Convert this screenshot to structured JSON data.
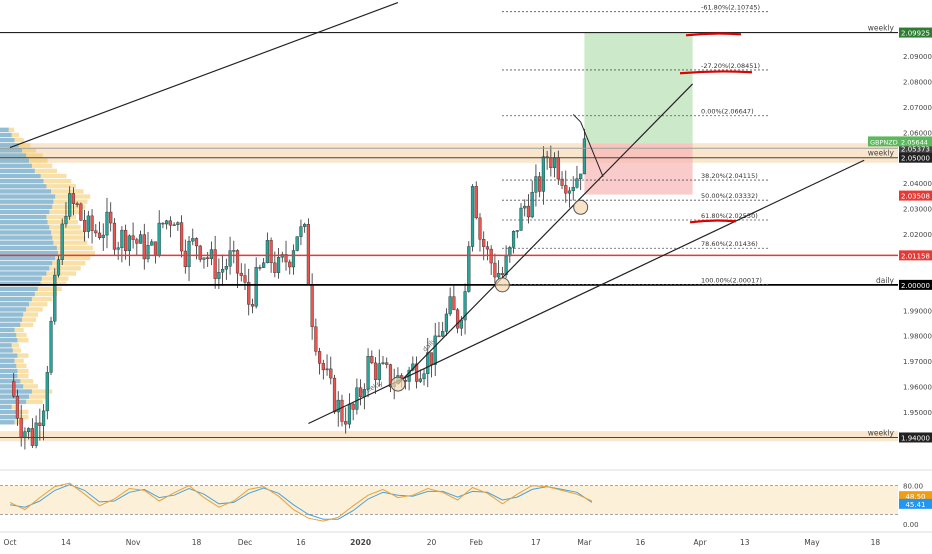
{
  "chart_data": {
    "type": "candlestick",
    "symbol_label": "GBPNZD",
    "symbol_price": "2.05644",
    "price_axis": {
      "ymin": 1.928,
      "ymax": 2.112,
      "ticks": [
        "2.09000",
        "2.08000",
        "2.07000",
        "2.06000",
        "2.04000",
        "2.03000",
        "2.02000",
        "1.99000",
        "1.98000",
        "1.97000",
        "1.96000",
        "1.95000"
      ]
    },
    "time_axis": {
      "labels": [
        {
          "label": "Oct",
          "day": 0,
          "bold": false
        },
        {
          "label": "14",
          "day": 15,
          "bold": false
        },
        {
          "label": "Nov",
          "day": 33,
          "bold": false
        },
        {
          "label": "18",
          "day": 50,
          "bold": false
        },
        {
          "label": "Dec",
          "day": 63,
          "bold": false
        },
        {
          "label": "16",
          "day": 78,
          "bold": false
        },
        {
          "label": "2020",
          "day": 94,
          "bold": true
        },
        {
          "label": "20",
          "day": 113,
          "bold": false
        },
        {
          "label": "Feb",
          "day": 125,
          "bold": false
        },
        {
          "label": "17",
          "day": 141,
          "bold": false
        },
        {
          "label": "Mar",
          "day": 154,
          "bold": false
        },
        {
          "label": "16",
          "day": 169,
          "bold": false
        },
        {
          "label": "Apr",
          "day": 185,
          "bold": false
        },
        {
          "label": "13",
          "day": 197,
          "bold": false
        },
        {
          "label": "May",
          "day": 215,
          "bold": false
        },
        {
          "label": "18",
          "day": 232,
          "bold": false
        }
      ]
    },
    "price_path": [
      [
        0,
        1.962
      ],
      [
        3,
        1.945
      ],
      [
        6,
        1.94
      ],
      [
        9,
        1.955
      ],
      [
        12,
        1.998
      ],
      [
        15,
        2.032
      ],
      [
        18,
        2.03
      ],
      [
        20,
        2.022
      ],
      [
        23,
        2.021
      ],
      [
        26,
        2.023
      ],
      [
        29,
        2.018
      ],
      [
        32,
        2.02
      ],
      [
        35,
        2.015
      ],
      [
        38,
        2.013
      ],
      [
        41,
        2.024
      ],
      [
        44,
        2.028
      ],
      [
        47,
        2.013
      ],
      [
        50,
        2.017
      ],
      [
        53,
        2.011
      ],
      [
        56,
        2.005
      ],
      [
        59,
        2.01
      ],
      [
        62,
        2.003
      ],
      [
        64,
        1.993
      ],
      [
        66,
        2.001
      ],
      [
        69,
        2.012
      ],
      [
        72,
        2.006
      ],
      [
        75,
        2.012
      ],
      [
        77,
        2.021
      ],
      [
        79,
        2.019
      ],
      [
        81,
        1.988
      ],
      [
        83,
        1.971
      ],
      [
        86,
        1.958
      ],
      [
        89,
        1.949
      ],
      [
        92,
        1.95
      ],
      [
        94,
        1.958
      ],
      [
        96,
        1.969
      ],
      [
        99,
        1.966
      ],
      [
        102,
        1.963
      ],
      [
        105,
        1.963
      ],
      [
        108,
        1.967
      ],
      [
        111,
        1.97
      ],
      [
        114,
        1.974
      ],
      [
        116,
        1.984
      ],
      [
        118,
        1.99
      ],
      [
        120,
        1.986
      ],
      [
        122,
        1.997
      ],
      [
        124,
        2.043
      ],
      [
        126,
        2.019
      ],
      [
        128,
        2.012
      ],
      [
        130,
        2.006
      ],
      [
        132,
        2.004
      ],
      [
        134,
        2.012
      ],
      [
        136,
        2.024
      ],
      [
        138,
        2.031
      ],
      [
        140,
        2.034
      ],
      [
        142,
        2.04
      ],
      [
        144,
        2.051
      ],
      [
        146,
        2.049
      ],
      [
        148,
        2.044
      ],
      [
        150,
        2.04
      ],
      [
        152,
        2.043
      ],
      [
        154,
        2.053
      ]
    ],
    "levels": [
      {
        "label": "weekly",
        "price": "2.09925",
        "value": 2.0992,
        "line_color": "#222222",
        "tag_color": "#2e7d32",
        "width": 1.2
      },
      {
        "label": "",
        "price": "2.05373",
        "value": 2.0537,
        "line_color": "#9e9e9e",
        "tag_color": "#444444",
        "width": 1
      },
      {
        "label": "weekly",
        "price": "2.05000",
        "value": 2.05,
        "line_color": "#444444",
        "tag_color": "#222222",
        "width": 1
      },
      {
        "label": "",
        "price": "2.03508",
        "value": 2.0351,
        "line_color": "#e53935",
        "tag_color": "#e53935",
        "width": 0
      },
      {
        "label": "",
        "price": "2.01158",
        "value": 2.0116,
        "line_color": "#e53935",
        "tag_color": "#e53935",
        "width": 1.6
      },
      {
        "label": "daily",
        "price": "2.00000",
        "value": 2.0,
        "line_color": "#000000",
        "tag_color": "#000000",
        "width": 1.8
      },
      {
        "label": "weekly",
        "price": "1.94000",
        "value": 1.94,
        "line_color": "#444444",
        "tag_color": "#222222",
        "width": 1
      }
    ],
    "fibonacci": [
      {
        "label": "-61.80%(2.10745)",
        "value": 2.1074
      },
      {
        "label": "-27.20%(2.08451)",
        "value": 2.0845
      },
      {
        "label": "0.00%(2.06647)",
        "value": 2.0665
      },
      {
        "label": "38.20%(2.04115)",
        "value": 2.0412
      },
      {
        "label": "50.00%(2.03332)",
        "value": 2.0333
      },
      {
        "label": "61.80%(2.02550)",
        "value": 2.0255
      },
      {
        "label": "78.60%(2.01436)",
        "value": 2.0144
      },
      {
        "label": "100.00%(2.00017)",
        "value": 2.0002
      }
    ],
    "zones": [
      {
        "from": 2.048,
        "to": 2.0557
      },
      {
        "from": 1.9385,
        "to": 1.9425
      }
    ],
    "position": {
      "start_day": 154,
      "end_day": 183,
      "entry": 2.0555,
      "target": 2.0992,
      "stop": 2.0355
    },
    "trendlines": [
      {
        "label": "",
        "from": [
          0,
          2.054
        ],
        "to": [
          104,
          2.111
        ]
      },
      {
        "label": "weekly",
        "from": [
          80,
          1.9455
        ],
        "to": [
          229,
          2.049
        ]
      },
      {
        "label": "daily",
        "from": [
          104,
          1.961
        ],
        "to": [
          183,
          2.079
        ]
      }
    ],
    "circles": [
      [
        104,
        1.961
      ],
      [
        132,
        2.0
      ],
      [
        153,
        2.0305
      ]
    ],
    "annotation_lines": [
      {
        "from": [
          151,
          2.067
        ],
        "to": [
          153,
          2.064
        ]
      },
      {
        "from": [
          153,
          2.064
        ],
        "to": [
          159,
          2.0425
        ]
      }
    ],
    "volume_profile": {
      "price_from": 1.945,
      "price_to": 2.062,
      "bins": 58,
      "volumes": [
        0.25,
        0.3,
        0.3,
        0.2,
        0.45,
        0.5,
        0.55,
        0.4,
        0.35,
        0.3,
        0.3,
        0.28,
        0.25,
        0.3,
        0.22,
        0.2,
        0.3,
        0.28,
        0.25,
        0.35,
        0.38,
        0.4,
        0.45,
        0.5,
        0.55,
        0.6,
        0.65,
        0.7,
        0.72,
        0.8,
        0.85,
        0.9,
        0.95,
        1.0,
        0.98,
        0.92,
        0.9,
        0.88,
        0.85,
        0.82,
        0.8,
        0.85,
        0.9,
        0.92,
        0.95,
        0.88,
        0.8,
        0.75,
        0.7,
        0.6,
        0.55,
        0.5,
        0.45,
        0.38,
        0.32,
        0.25,
        0.2,
        0.15
      ]
    },
    "stochastic": {
      "ymin": 0,
      "ymax": 100,
      "ticks": [
        "80.00",
        "0.00"
      ],
      "upper": 80,
      "lower": 20,
      "k_label": "48.50",
      "d_label": "45.41",
      "k": [
        [
          0,
          45
        ],
        [
          4,
          30
        ],
        [
          8,
          55
        ],
        [
          12,
          78
        ],
        [
          16,
          85
        ],
        [
          20,
          62
        ],
        [
          24,
          38
        ],
        [
          28,
          52
        ],
        [
          32,
          74
        ],
        [
          36,
          70
        ],
        [
          40,
          48
        ],
        [
          44,
          65
        ],
        [
          48,
          80
        ],
        [
          52,
          55
        ],
        [
          56,
          35
        ],
        [
          60,
          48
        ],
        [
          64,
          72
        ],
        [
          68,
          78
        ],
        [
          72,
          58
        ],
        [
          76,
          30
        ],
        [
          80,
          12
        ],
        [
          84,
          6
        ],
        [
          88,
          14
        ],
        [
          92,
          38
        ],
        [
          96,
          60
        ],
        [
          100,
          72
        ],
        [
          104,
          55
        ],
        [
          108,
          60
        ],
        [
          112,
          74
        ],
        [
          116,
          66
        ],
        [
          120,
          50
        ],
        [
          124,
          76
        ],
        [
          128,
          64
        ],
        [
          132,
          42
        ],
        [
          136,
          62
        ],
        [
          140,
          80
        ],
        [
          144,
          78
        ],
        [
          148,
          70
        ],
        [
          152,
          62
        ],
        [
          156,
          48
        ]
      ],
      "d": [
        [
          0,
          40
        ],
        [
          4,
          35
        ],
        [
          8,
          48
        ],
        [
          12,
          70
        ],
        [
          16,
          82
        ],
        [
          20,
          70
        ],
        [
          24,
          46
        ],
        [
          28,
          48
        ],
        [
          32,
          66
        ],
        [
          36,
          72
        ],
        [
          40,
          55
        ],
        [
          44,
          60
        ],
        [
          48,
          74
        ],
        [
          52,
          62
        ],
        [
          56,
          42
        ],
        [
          60,
          45
        ],
        [
          64,
          64
        ],
        [
          68,
          75
        ],
        [
          72,
          64
        ],
        [
          76,
          40
        ],
        [
          80,
          20
        ],
        [
          84,
          10
        ],
        [
          88,
          10
        ],
        [
          92,
          28
        ],
        [
          96,
          52
        ],
        [
          100,
          66
        ],
        [
          104,
          60
        ],
        [
          108,
          58
        ],
        [
          112,
          68
        ],
        [
          116,
          68
        ],
        [
          120,
          56
        ],
        [
          124,
          68
        ],
        [
          128,
          66
        ],
        [
          132,
          50
        ],
        [
          136,
          56
        ],
        [
          140,
          72
        ],
        [
          144,
          78
        ],
        [
          148,
          72
        ],
        [
          152,
          66
        ],
        [
          156,
          45
        ]
      ]
    },
    "colors": {
      "up": "#26a69a",
      "down": "#ef5350",
      "k_line": "#e6a23c",
      "d_line": "#4aa3df",
      "profile_main": "#f3c75f",
      "profile_alt": "#6fb1e6"
    }
  }
}
